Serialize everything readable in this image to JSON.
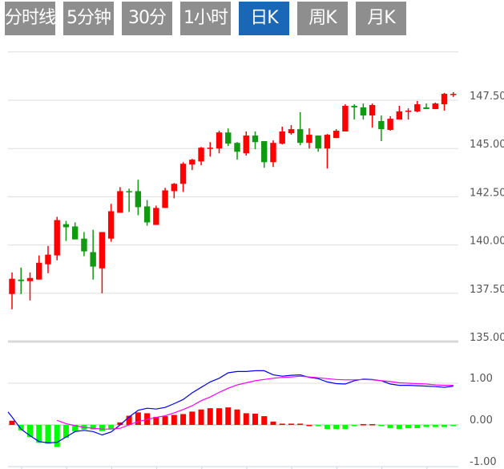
{
  "tabs": [
    {
      "label": "分时线",
      "active": false
    },
    {
      "label": "5分钟",
      "active": false
    },
    {
      "label": "30分钟",
      "active": false
    },
    {
      "label": "1小时",
      "active": false
    },
    {
      "label": "日K",
      "active": true
    },
    {
      "label": "周K",
      "active": false
    },
    {
      "label": "月K",
      "active": false
    }
  ],
  "colors": {
    "up": "#ff0000",
    "down": "#0f9a0f",
    "hist_up": "#ff0000",
    "hist_down": "#00ff00",
    "dif": "#0000ff",
    "dea": "#ff00ff",
    "tab_bg": "#8e8e8e",
    "tab_active": "#1a67b8",
    "grid": "#dddddd"
  },
  "chart_data": [
    {
      "type": "candlestick",
      "title": "",
      "ylim": [
        135,
        150
      ],
      "yticks": [
        "135.00",
        "137.50",
        "140.00",
        "142.50",
        "145.00",
        "147.50"
      ],
      "ytick_values": [
        135,
        137.5,
        140,
        142.5,
        145,
        147.5
      ],
      "grid": true,
      "ohlc": [
        [
          137.46,
          138.58,
          136.67,
          138.25
        ],
        [
          138.21,
          138.83,
          137.46,
          138.13
        ],
        [
          138.13,
          138.58,
          137.13,
          138.29
        ],
        [
          138.21,
          139.46,
          138.21,
          139.08
        ],
        [
          139.0,
          139.95,
          138.54,
          139.5
        ],
        [
          139.46,
          141.46,
          139.21,
          141.29
        ],
        [
          141.08,
          141.25,
          140.21,
          140.92
        ],
        [
          140.96,
          141.17,
          140.29,
          140.29
        ],
        [
          140.33,
          140.67,
          139.42,
          139.67
        ],
        [
          139.63,
          140.79,
          138.21,
          138.88
        ],
        [
          138.79,
          140.67,
          137.5,
          140.67
        ],
        [
          140.33,
          142.13,
          140.17,
          141.75
        ],
        [
          141.67,
          143.0,
          141.67,
          142.79
        ],
        [
          142.79,
          142.92,
          141.71,
          142.75
        ],
        [
          142.79,
          143.38,
          141.54,
          141.96
        ],
        [
          142.0,
          142.33,
          141.0,
          141.17
        ],
        [
          141.04,
          142.04,
          141.04,
          141.92
        ],
        [
          141.92,
          142.96,
          141.92,
          142.83
        ],
        [
          142.79,
          143.21,
          142.42,
          143.17
        ],
        [
          143.17,
          144.29,
          142.75,
          144.21
        ],
        [
          144.17,
          144.46,
          143.88,
          144.42
        ],
        [
          144.33,
          145.08,
          144.13,
          145.04
        ],
        [
          145.0,
          145.33,
          144.58,
          145.04
        ],
        [
          145.0,
          145.92,
          144.75,
          145.83
        ],
        [
          145.83,
          146.04,
          145.13,
          145.25
        ],
        [
          145.29,
          145.33,
          144.42,
          144.83
        ],
        [
          144.75,
          145.88,
          144.63,
          145.67
        ],
        [
          145.67,
          145.88,
          144.96,
          145.33
        ],
        [
          145.38,
          145.38,
          144.0,
          144.29
        ],
        [
          144.29,
          145.42,
          144.04,
          145.29
        ],
        [
          145.25,
          146.13,
          145.21,
          145.88
        ],
        [
          145.79,
          146.21,
          145.71,
          146.0
        ],
        [
          146.0,
          146.88,
          145.17,
          145.29
        ],
        [
          145.29,
          146.04,
          145.0,
          145.71
        ],
        [
          145.67,
          145.67,
          144.83,
          145.0
        ],
        [
          145.0,
          145.75,
          143.96,
          145.71
        ],
        [
          145.54,
          146.0,
          145.54,
          145.92
        ],
        [
          145.88,
          147.29,
          145.88,
          147.21
        ],
        [
          147.21,
          147.29,
          146.5,
          147.13
        ],
        [
          147.13,
          147.33,
          146.5,
          146.71
        ],
        [
          146.71,
          147.33,
          146.08,
          147.25
        ],
        [
          146.42,
          146.71,
          145.38,
          146.0
        ],
        [
          145.96,
          146.67,
          145.92,
          146.54
        ],
        [
          146.5,
          147.21,
          146.5,
          146.92
        ],
        [
          146.92,
          147.08,
          146.5,
          146.96
        ],
        [
          146.92,
          147.46,
          146.88,
          147.29
        ],
        [
          147.13,
          147.33,
          147.04,
          147.04
        ],
        [
          147.04,
          147.38,
          147.04,
          147.33
        ],
        [
          147.29,
          147.88,
          146.96,
          147.83
        ],
        [
          147.79,
          147.92,
          147.67,
          147.83
        ]
      ]
    },
    {
      "type": "macd",
      "ylim": [
        -1,
        1
      ],
      "yticks": [
        "1.00",
        "0.00",
        "-1.00"
      ],
      "ytick_values": [
        1,
        0,
        -1
      ],
      "hist": [
        0.1,
        -0.13,
        -0.29,
        -0.43,
        -0.45,
        -0.53,
        -0.31,
        -0.16,
        -0.11,
        -0.11,
        -0.15,
        -0.1,
        0.06,
        0.22,
        0.3,
        0.28,
        0.19,
        0.21,
        0.24,
        0.26,
        0.32,
        0.37,
        0.4,
        0.4,
        0.42,
        0.37,
        0.28,
        0.27,
        0.21,
        0.08,
        0.03,
        0.03,
        0.03,
        0.0,
        -0.03,
        -0.1,
        -0.1,
        -0.1,
        -0.02,
        0.02,
        0.02,
        -0.02,
        -0.08,
        -0.1,
        -0.08,
        -0.08,
        -0.05,
        -0.05,
        -0.05,
        -0.02
      ],
      "dif": [
        0.19,
        -0.1,
        -0.26,
        -0.4,
        -0.43,
        -0.42,
        -0.29,
        -0.16,
        -0.13,
        -0.16,
        -0.24,
        -0.17,
        0.0,
        0.19,
        0.35,
        0.4,
        0.38,
        0.42,
        0.51,
        0.61,
        0.77,
        0.9,
        1.03,
        1.12,
        1.25,
        1.28,
        1.28,
        1.3,
        1.3,
        1.2,
        1.17,
        1.19,
        1.2,
        1.14,
        1.11,
        1.03,
        0.99,
        0.98,
        1.06,
        1.1,
        1.09,
        1.06,
        0.98,
        0.95,
        0.95,
        0.94,
        0.93,
        0.92,
        0.9,
        0.93
      ],
      "dea": [
        null,
        null,
        null,
        null,
        null,
        0.11,
        0.03,
        -0.02,
        -0.06,
        -0.08,
        -0.1,
        -0.1,
        -0.08,
        0.0,
        0.08,
        0.13,
        0.18,
        0.22,
        0.29,
        0.37,
        0.46,
        0.58,
        0.67,
        0.78,
        0.88,
        0.96,
        1.01,
        1.06,
        1.09,
        1.12,
        1.14,
        1.15,
        1.17,
        1.15,
        1.13,
        1.11,
        1.09,
        1.08,
        1.08,
        1.09,
        1.08,
        1.06,
        1.04,
        1.01,
        1.0,
        0.99,
        0.98,
        0.96,
        0.95,
        0.95
      ]
    }
  ]
}
